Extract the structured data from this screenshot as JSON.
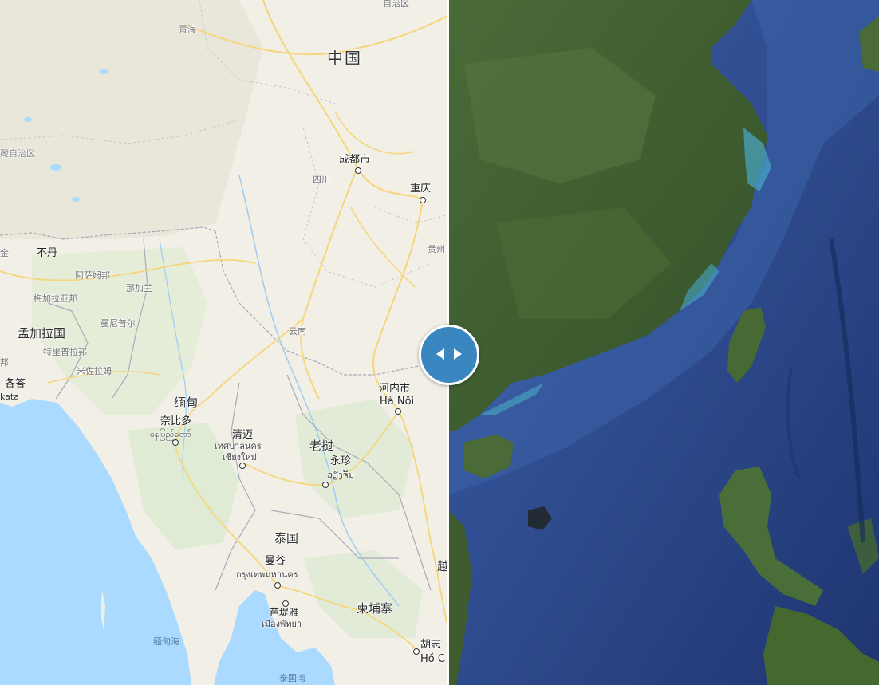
{
  "map_labels": {
    "china": "中国",
    "qinghai": "青海",
    "xizang": "藏自治区",
    "chengdu": "成都市",
    "sichuan": "四川",
    "chongqing": "重庆",
    "guizhou": "贵州",
    "bhutan": "不丹",
    "assam": "阿萨姆邦",
    "nagaland": "那加兰",
    "meghalaya": "梅加拉亚邦",
    "manipur": "曼尼普尔",
    "bangladesh": "孟加拉国",
    "tripura": "特里普拉邦",
    "mizoram": "米佐拉姆",
    "kolkata_cn": "各答",
    "kolkata": "kata",
    "yunnan": "云南",
    "hanoi_cn": "河内市",
    "hanoi": "Hà Nội",
    "myanmar": "缅甸",
    "naypyidaw_cn": "奈比多",
    "naypyidaw": "နေပြည်တော်",
    "chiangmai_cn": "清迈",
    "chiangmai_th1": "เทศบาลนคร",
    "chiangmai_th2": "เชียงใหม่",
    "laos": "老挝",
    "vientiane_cn": "永珍",
    "vientiane": "ວຽງຈັນ",
    "thailand": "泰国",
    "bangkok_cn": "曼谷",
    "bangkok": "กรุงเทพมหานคร",
    "pattaya_cn": "芭堤雅",
    "pattaya": "เมืองพัทยา",
    "cambodia": "柬埔寨",
    "andaman_sea": "缅甸海",
    "gulf_thailand": "泰国湾",
    "hcmc_cn": "胡志",
    "hcmc": "Hồ C",
    "vietnam": "越",
    "autonomous": "自治区",
    "edge_la": "邦",
    "edge_ji": "金"
  },
  "slider": {
    "left_icon": "chevron-left-icon",
    "right_icon": "chevron-right-icon",
    "position": 0.51
  },
  "colors": {
    "land": "#f1efe6",
    "highland": "#e9e6da",
    "forest": "#dbead0",
    "water": "#aadaff",
    "road": "#f6d67a",
    "border": "#a9a9b8",
    "handle": "#3a86c1",
    "satellite_sea": "#2e4c8c",
    "satellite_land": "#3f5a2e"
  }
}
